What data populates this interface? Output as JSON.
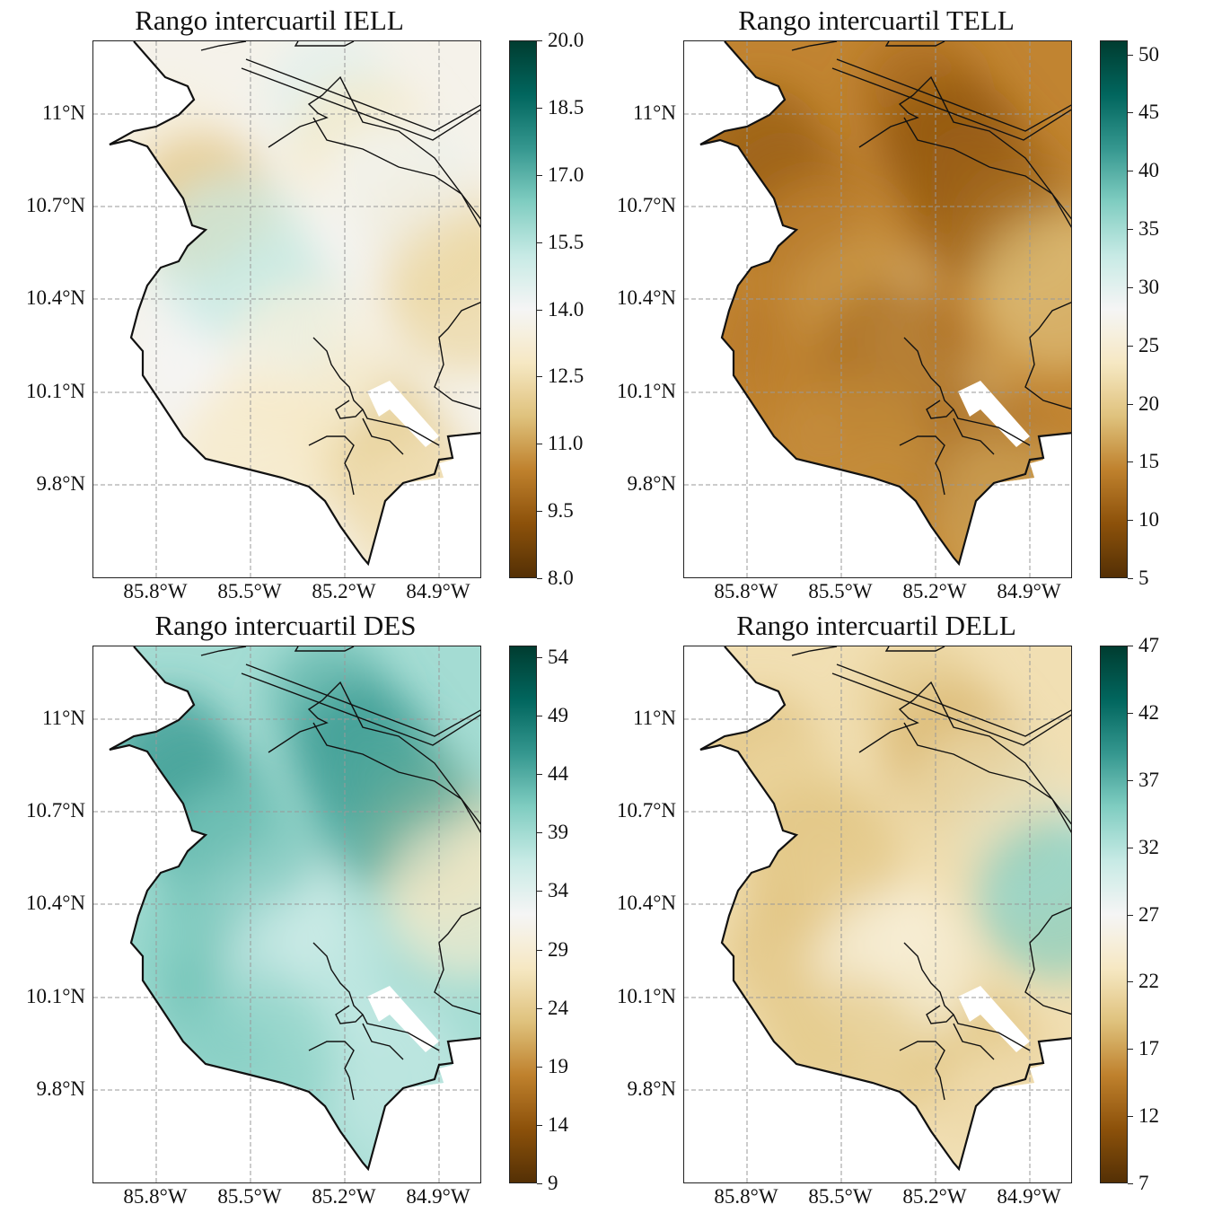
{
  "panels": [
    {
      "title": "Rango intercuartil IELL",
      "colorbar": {
        "min": 8.0,
        "max": 20.0,
        "ticks": [
          "8.0",
          "9.5",
          "11.0",
          "12.5",
          "14.0",
          "15.5",
          "17.0",
          "18.5",
          "20.0"
        ]
      },
      "dominant": "light teal / cream mix"
    },
    {
      "title": "Rango intercuartil TELL",
      "colorbar": {
        "min": 5,
        "max": 51.2,
        "ticks": [
          "5",
          "10",
          "15",
          "20",
          "25",
          "30",
          "35",
          "40",
          "45",
          "50"
        ]
      },
      "dominant": "brown"
    },
    {
      "title": "Rango intercuartil DES",
      "colorbar": {
        "min": 9,
        "max": 55,
        "ticks": [
          "9",
          "14",
          "19",
          "24",
          "29",
          "34",
          "39",
          "44",
          "49",
          "54"
        ]
      },
      "dominant": "teal"
    },
    {
      "title": "Rango intercuartil DELL",
      "colorbar": {
        "min": 7,
        "max": 47,
        "ticks": [
          "7",
          "12",
          "17",
          "22",
          "27",
          "32",
          "37",
          "42",
          "47"
        ]
      },
      "dominant": "tan"
    }
  ],
  "lat_ticks": [
    "11°N",
    "10.7°N",
    "10.4°N",
    "10.1°N",
    "9.8°N"
  ],
  "lon_ticks": [
    "85.8°W",
    "85.5°W",
    "85.2°W",
    "84.9°W"
  ],
  "colormap": "BrBG",
  "colors": {
    "brown_end": "#543005",
    "teal_end": "#003c30",
    "mid": "#f5f5f5"
  }
}
